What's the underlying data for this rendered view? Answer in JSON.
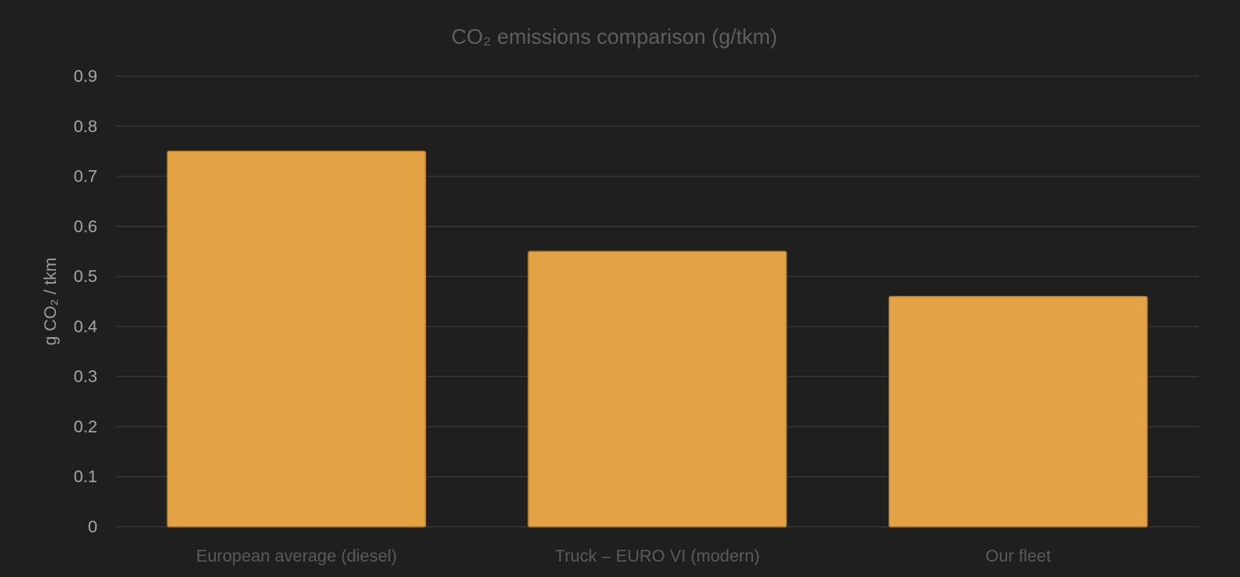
{
  "chart_data": {
    "type": "bar",
    "title": "CO₂ emissions comparison (g/tkm)",
    "ylabel": "g CO₂ / tkm",
    "xlabel": "",
    "categories": [
      "European average (diesel)",
      "Truck – EURO VI (modern)",
      "Our fleet"
    ],
    "series": [
      {
        "values": [
          0.75,
          0.55,
          0.46
        ],
        "color": "#e3a244"
      }
    ],
    "ylim": [
      0,
      0.9
    ],
    "yticks": [
      0,
      0.1,
      0.2,
      0.3,
      0.4,
      0.5,
      0.6,
      0.7,
      0.8,
      0.9
    ],
    "ytick_labels": [
      "0",
      "0.1",
      "0.2",
      "0.3",
      "0.4",
      "0.5",
      "0.6",
      "0.7",
      "0.8",
      "0.9"
    ],
    "grid": true,
    "legend": "none"
  },
  "colors": {
    "background": "#1f1f1f",
    "bar": "#e3a244",
    "bar_border": "#b8802c",
    "grid": "#363636"
  }
}
